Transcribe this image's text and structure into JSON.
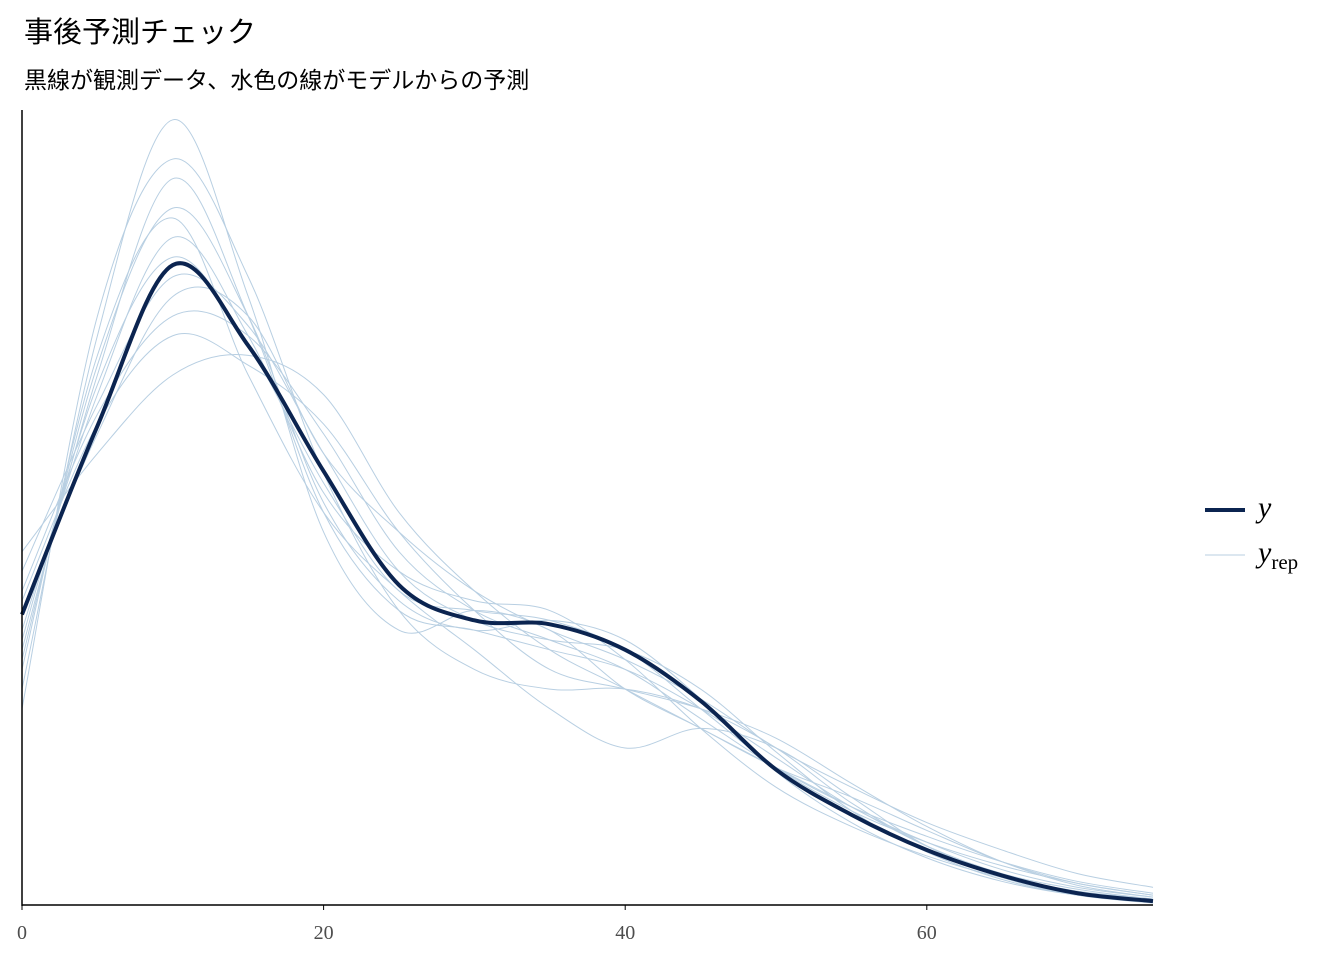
{
  "chart_data": {
    "type": "density_overlay",
    "title": "事後予測チェック",
    "subtitle": "黒線が観測データ、水色の線がモデルからの予測",
    "x": [
      0,
      5,
      10,
      15,
      20,
      25,
      30,
      35,
      40,
      45,
      50,
      55,
      60,
      65,
      70,
      75
    ],
    "xlim": [
      0,
      75
    ],
    "xticks": [
      0,
      20,
      40,
      60
    ],
    "ylim": [
      0,
      0.0405
    ],
    "legend": "right",
    "series": [
      {
        "name": "y",
        "color": "#0b2450",
        "values": [
          0.0148,
          0.0244,
          0.0326,
          0.0285,
          0.0221,
          0.0163,
          0.0145,
          0.0143,
          0.013,
          0.0104,
          0.0069,
          0.0046,
          0.0028,
          0.0015,
          0.0006,
          0.0002
        ]
      },
      {
        "name": "y",
        "subscript": "rep",
        "color": "#b8cfe2",
        "draws": [
          [
            0.013,
            0.027,
            0.037,
            0.03,
            0.02,
            0.015,
            0.014,
            0.013,
            0.012,
            0.01,
            0.0075,
            0.005,
            0.0032,
            0.0018,
            0.0009,
            0.0004
          ],
          [
            0.016,
            0.025,
            0.03,
            0.029,
            0.024,
            0.018,
            0.015,
            0.0135,
            0.012,
            0.0095,
            0.007,
            0.005,
            0.0035,
            0.0022,
            0.0012,
            0.0006
          ],
          [
            0.011,
            0.029,
            0.04,
            0.031,
            0.019,
            0.014,
            0.015,
            0.014,
            0.011,
            0.009,
            0.007,
            0.0055,
            0.0038,
            0.0022,
            0.0011,
            0.0005
          ],
          [
            0.018,
            0.023,
            0.027,
            0.028,
            0.026,
            0.02,
            0.016,
            0.013,
            0.011,
            0.009,
            0.007,
            0.005,
            0.003,
            0.0016,
            0.0008,
            0.0003
          ],
          [
            0.014,
            0.026,
            0.034,
            0.029,
            0.021,
            0.017,
            0.0155,
            0.015,
            0.0125,
            0.009,
            0.006,
            0.004,
            0.0025,
            0.0014,
            0.0007,
            0.0003
          ],
          [
            0.012,
            0.028,
            0.035,
            0.027,
            0.02,
            0.016,
            0.013,
            0.01,
            0.008,
            0.009,
            0.008,
            0.0055,
            0.003,
            0.0015,
            0.0007,
            0.0002
          ],
          [
            0.015,
            0.024,
            0.031,
            0.03,
            0.023,
            0.019,
            0.016,
            0.014,
            0.0125,
            0.0105,
            0.008,
            0.006,
            0.0042,
            0.0028,
            0.0016,
            0.0009
          ],
          [
            0.01,
            0.03,
            0.038,
            0.032,
            0.022,
            0.015,
            0.012,
            0.011,
            0.011,
            0.01,
            0.008,
            0.0052,
            0.003,
            0.0014,
            0.0005,
            0.0001
          ],
          [
            0.017,
            0.0255,
            0.032,
            0.0295,
            0.023,
            0.017,
            0.0145,
            0.0135,
            0.013,
            0.011,
            0.0078,
            0.0048,
            0.0027,
            0.0013,
            0.0005,
            0.0002
          ],
          [
            0.0135,
            0.0265,
            0.033,
            0.0285,
            0.0215,
            0.016,
            0.015,
            0.0145,
            0.013,
            0.01,
            0.007,
            0.0048,
            0.0032,
            0.002,
            0.0011,
            0.0005
          ],
          [
            0.0155,
            0.0245,
            0.029,
            0.0275,
            0.0245,
            0.019,
            0.015,
            0.012,
            0.011,
            0.01,
            0.0085,
            0.0062,
            0.004,
            0.0022,
            0.001,
            0.0004
          ],
          [
            0.0125,
            0.0275,
            0.0355,
            0.03,
            0.0205,
            0.0155,
            0.014,
            0.0145,
            0.0135,
            0.0105,
            0.0068,
            0.0042,
            0.0024,
            0.0012,
            0.0005,
            0.0002
          ]
        ]
      }
    ]
  }
}
